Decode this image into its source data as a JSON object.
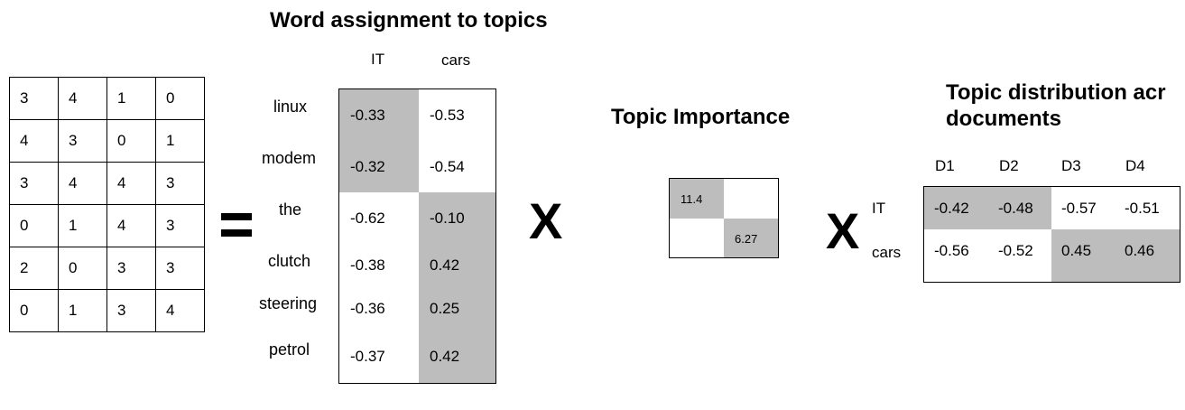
{
  "colors": {
    "shade": "#bdbdbd",
    "line": "#000000",
    "background": "#ffffff"
  },
  "dtm": {
    "rows": [
      [
        "3",
        "4",
        "1",
        "0"
      ],
      [
        "4",
        "3",
        "0",
        "1"
      ],
      [
        "3",
        "4",
        "4",
        "3"
      ],
      [
        "0",
        "1",
        "4",
        "3"
      ],
      [
        "2",
        "0",
        "3",
        "3"
      ],
      [
        "0",
        "1",
        "3",
        "4"
      ]
    ]
  },
  "equals_sign": "=",
  "word_topics": {
    "title": "Word assignment to topics",
    "columns": [
      "IT",
      "cars"
    ],
    "words": [
      "linux",
      "modem",
      "the",
      "clutch",
      "steering",
      "petrol"
    ],
    "values": [
      [
        "-0.33",
        "-0.53"
      ],
      [
        "-0.32",
        "-0.54"
      ],
      [
        "-0.62",
        "-0.10"
      ],
      [
        "-0.38",
        "0.42"
      ],
      [
        "-0.36",
        "0.25"
      ],
      [
        "-0.37",
        "0.42"
      ]
    ],
    "shaded": [
      [
        true,
        false
      ],
      [
        true,
        false
      ],
      [
        false,
        true
      ],
      [
        false,
        true
      ],
      [
        false,
        true
      ],
      [
        false,
        true
      ]
    ]
  },
  "multiply_sign": "X",
  "topic_importance": {
    "title": "Topic Importance",
    "values": [
      "11.4",
      "6.27"
    ]
  },
  "topic_docs": {
    "title_line1": "Topic distribution acr",
    "title_line2": "documents",
    "columns": [
      "D1",
      "D2",
      "D3",
      "D4"
    ],
    "rows": [
      "IT",
      "cars"
    ],
    "values": [
      [
        "-0.42",
        "-0.48",
        "-0.57",
        "-0.51"
      ],
      [
        "-0.56",
        "-0.52",
        "0.45",
        "0.46"
      ]
    ],
    "shaded": [
      [
        true,
        true,
        false,
        false
      ],
      [
        false,
        false,
        true,
        true
      ]
    ]
  }
}
